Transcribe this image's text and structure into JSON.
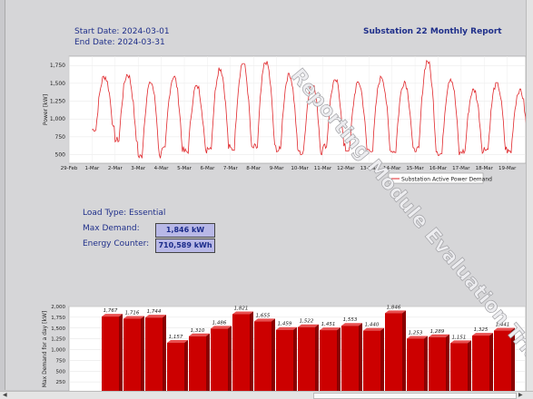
{
  "header": {
    "start_label": "Start Date:",
    "start_date": "2024-03-01",
    "end_label": "End Date:",
    "end_date": "2024-03-31",
    "report_title": "Substation 22 Monthly Report"
  },
  "summary": {
    "load_type_label": "Load Type:",
    "load_type": "Essential",
    "max_demand_label": "Max Demand:",
    "max_demand": "1,846 kW",
    "energy_label": "Energy Counter:",
    "energy": "710,589 kWh"
  },
  "watermark": "Reporting Module Evaluation Trial",
  "colors": {
    "series": "#e0262a",
    "bar": "#cc0000",
    "header_text": "#1f2f8a",
    "value_box": "#b8b8e6"
  },
  "chart_data": [
    {
      "type": "line",
      "ylabel": "Power [kW]",
      "xlabel": "",
      "yticks": [
        500,
        750,
        1000,
        1250,
        1500,
        1750
      ],
      "ylim": [
        380,
        1880
      ],
      "xticks": [
        "29-Feb",
        "1-Mar",
        "2-Mar",
        "3-Mar",
        "4-Mar",
        "5-Mar",
        "6-Mar",
        "7-Mar",
        "8-Mar",
        "9-Mar",
        "10-Mar",
        "11-Mar",
        "12-Mar",
        "13-Mar",
        "14-Mar",
        "15-Mar",
        "16-Mar",
        "17-Mar",
        "18-Mar",
        "19-Mar"
      ],
      "x_range_days": [
        0,
        19.8
      ],
      "grid": true,
      "legend": "bottom-right",
      "series": [
        {
          "name": "Substation Active Power Demand",
          "daily_min": [
            null,
            850,
            700,
            470,
            560,
            540,
            600,
            580,
            600,
            560,
            520,
            610,
            570,
            560,
            550,
            560,
            510,
            540,
            580,
            540
          ],
          "daily_max": [
            null,
            1600,
            1630,
            1520,
            1600,
            1470,
            1720,
            1790,
            1810,
            1640,
            1500,
            1550,
            1520,
            1600,
            1530,
            1820,
            1580,
            1420,
            1510,
            1420
          ]
        }
      ]
    },
    {
      "type": "bar",
      "ylabel": "Max Demand for a day [kW]",
      "yticks": [
        250,
        500,
        750,
        1000,
        1250,
        1500,
        1750,
        2000
      ],
      "ylim": [
        0,
        2000
      ],
      "grid": true,
      "values": [
        1767,
        1716,
        1744,
        1157,
        1310,
        1486,
        1821,
        1655,
        1459,
        1522,
        1451,
        1553,
        1440,
        1846,
        1253,
        1289,
        1151,
        1325,
        1441
      ],
      "labels": [
        "1,767",
        "1,716",
        "1,744",
        "1,157",
        "1,310",
        "1,486",
        "1,821",
        "1,655",
        "1,459",
        "1,522",
        "1,451",
        "1,553",
        "1,440",
        "1,846",
        "1,253",
        "1,289",
        "1,151",
        "1,325",
        "1,441"
      ]
    }
  ]
}
